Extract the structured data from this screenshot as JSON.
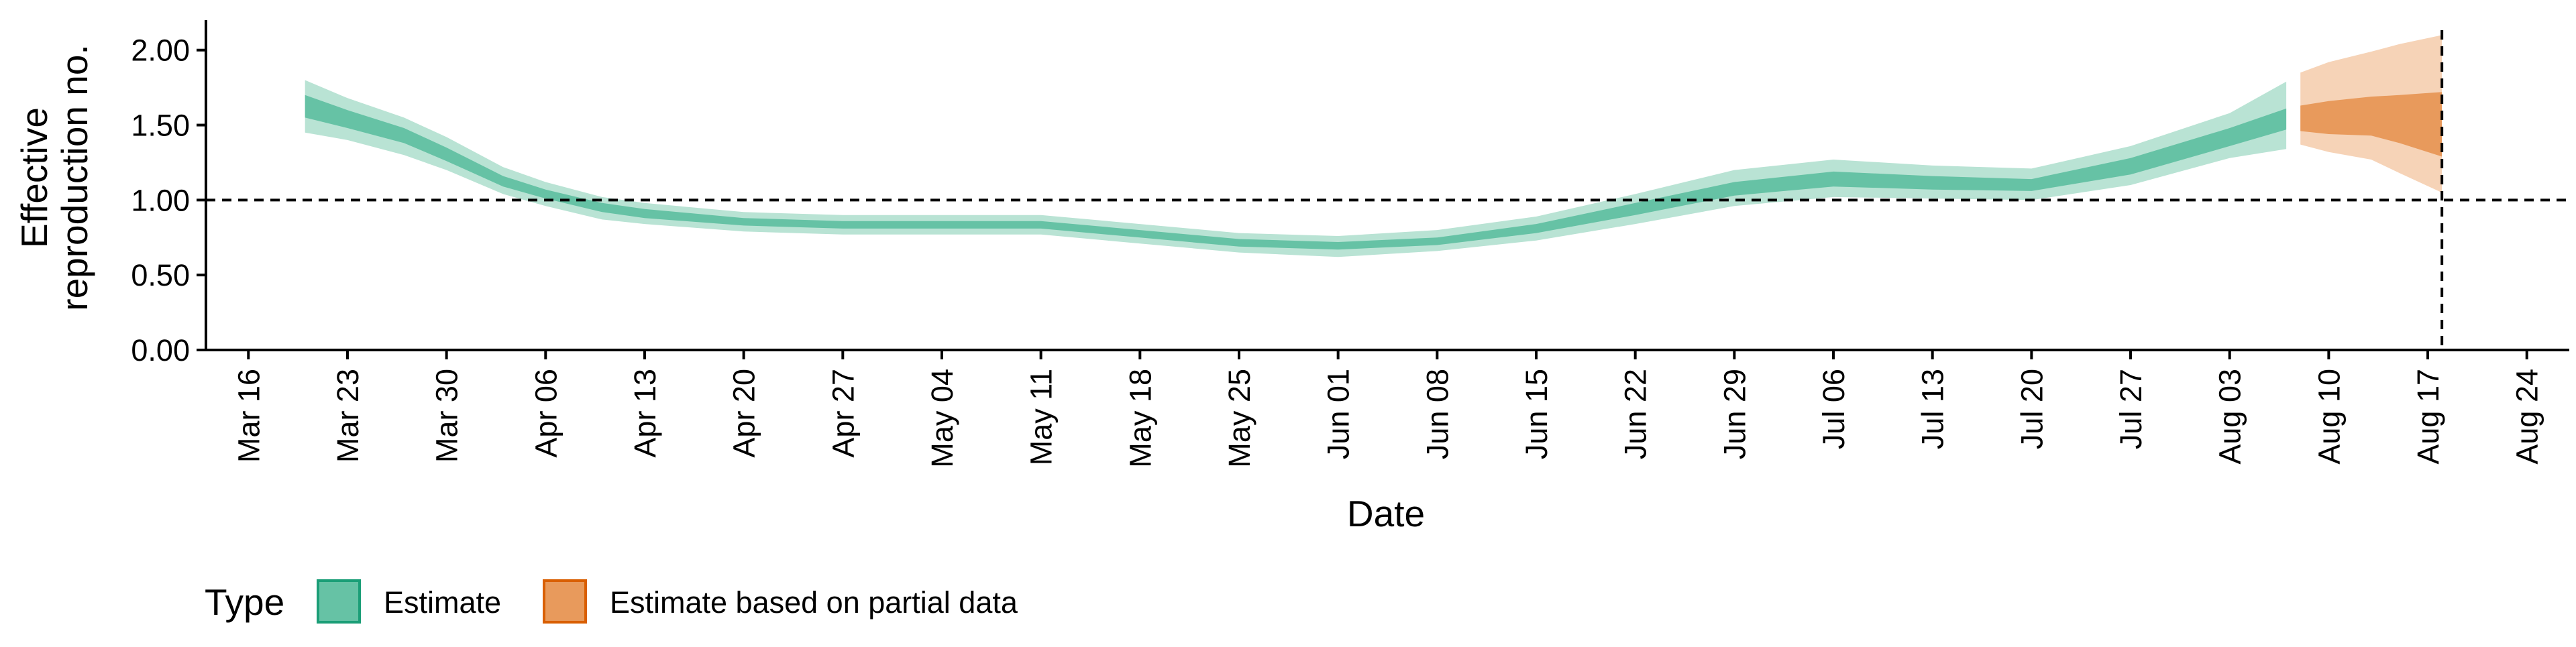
{
  "chart_data": {
    "type": "area",
    "title": "",
    "xlabel": "Date",
    "ylabel": "Effective reproduction no.",
    "ylabel_lines": [
      "Effective",
      "reproduction no."
    ],
    "ylim": [
      0,
      2.2
    ],
    "y_ticks": [
      {
        "value": 0.0,
        "label": "0.00"
      },
      {
        "value": 0.5,
        "label": "0.50"
      },
      {
        "value": 1.0,
        "label": "1.00"
      },
      {
        "value": 1.5,
        "label": "1.50"
      },
      {
        "value": 2.0,
        "label": "2.00"
      }
    ],
    "xlim": [
      "2020-03-13",
      "2020-08-27"
    ],
    "x_ticks": [
      {
        "date": "2020-03-16",
        "label": "Mar 16"
      },
      {
        "date": "2020-03-23",
        "label": "Mar 23"
      },
      {
        "date": "2020-03-30",
        "label": "Mar 30"
      },
      {
        "date": "2020-04-06",
        "label": "Apr 06"
      },
      {
        "date": "2020-04-13",
        "label": "Apr 13"
      },
      {
        "date": "2020-04-20",
        "label": "Apr 20"
      },
      {
        "date": "2020-04-27",
        "label": "Apr 27"
      },
      {
        "date": "2020-05-04",
        "label": "May 04"
      },
      {
        "date": "2020-05-11",
        "label": "May 11"
      },
      {
        "date": "2020-05-18",
        "label": "May 18"
      },
      {
        "date": "2020-05-25",
        "label": "May 25"
      },
      {
        "date": "2020-06-01",
        "label": "Jun 01"
      },
      {
        "date": "2020-06-08",
        "label": "Jun 08"
      },
      {
        "date": "2020-06-15",
        "label": "Jun 15"
      },
      {
        "date": "2020-06-22",
        "label": "Jun 22"
      },
      {
        "date": "2020-06-29",
        "label": "Jun 29"
      },
      {
        "date": "2020-07-06",
        "label": "Jul 06"
      },
      {
        "date": "2020-07-13",
        "label": "Jul 13"
      },
      {
        "date": "2020-07-20",
        "label": "Jul 20"
      },
      {
        "date": "2020-07-27",
        "label": "Jul 27"
      },
      {
        "date": "2020-08-03",
        "label": "Aug 03"
      },
      {
        "date": "2020-08-10",
        "label": "Aug 10"
      },
      {
        "date": "2020-08-17",
        "label": "Aug 17"
      },
      {
        "date": "2020-08-24",
        "label": "Aug 24"
      }
    ],
    "reference_lines": {
      "horizontal_y": 1.0,
      "vertical_date": "2020-08-18"
    },
    "grid": false,
    "legend": {
      "position": "bottom-left",
      "title": "Type",
      "entries": [
        {
          "label": "Estimate",
          "fill": "#66c2a5",
          "stroke": "#1b9e77"
        },
        {
          "label": "Estimate based on partial data",
          "fill": "#e89a5c",
          "stroke": "#d95f02"
        }
      ]
    },
    "series": [
      {
        "name": "Estimate",
        "fill_dark": "#66c2a5",
        "fill_light": "#b9e3d4",
        "points": [
          {
            "date": "2020-03-20",
            "lo90": 1.45,
            "lo50": 1.55,
            "hi50": 1.7,
            "hi90": 1.8
          },
          {
            "date": "2020-03-23",
            "lo90": 1.4,
            "lo50": 1.48,
            "hi50": 1.6,
            "hi90": 1.68
          },
          {
            "date": "2020-03-27",
            "lo90": 1.3,
            "lo50": 1.38,
            "hi50": 1.48,
            "hi90": 1.55
          },
          {
            "date": "2020-03-30",
            "lo90": 1.2,
            "lo50": 1.26,
            "hi50": 1.35,
            "hi90": 1.42
          },
          {
            "date": "2020-04-03",
            "lo90": 1.04,
            "lo50": 1.09,
            "hi50": 1.16,
            "hi90": 1.22
          },
          {
            "date": "2020-04-06",
            "lo90": 0.96,
            "lo50": 1.01,
            "hi50": 1.07,
            "hi90": 1.12
          },
          {
            "date": "2020-04-10",
            "lo90": 0.87,
            "lo50": 0.92,
            "hi50": 0.98,
            "hi90": 1.02
          },
          {
            "date": "2020-04-13",
            "lo90": 0.84,
            "lo50": 0.88,
            "hi50": 0.94,
            "hi90": 0.98
          },
          {
            "date": "2020-04-20",
            "lo90": 0.79,
            "lo50": 0.83,
            "hi50": 0.88,
            "hi90": 0.92
          },
          {
            "date": "2020-04-27",
            "lo90": 0.77,
            "lo50": 0.81,
            "hi50": 0.86,
            "hi90": 0.9
          },
          {
            "date": "2020-05-04",
            "lo90": 0.77,
            "lo50": 0.81,
            "hi50": 0.86,
            "hi90": 0.9
          },
          {
            "date": "2020-05-11",
            "lo90": 0.77,
            "lo50": 0.81,
            "hi50": 0.86,
            "hi90": 0.9
          },
          {
            "date": "2020-05-18",
            "lo90": 0.71,
            "lo50": 0.75,
            "hi50": 0.8,
            "hi90": 0.84
          },
          {
            "date": "2020-05-25",
            "lo90": 0.65,
            "lo50": 0.69,
            "hi50": 0.74,
            "hi90": 0.78
          },
          {
            "date": "2020-06-01",
            "lo90": 0.62,
            "lo50": 0.67,
            "hi50": 0.72,
            "hi90": 0.76
          },
          {
            "date": "2020-06-08",
            "lo90": 0.66,
            "lo50": 0.7,
            "hi50": 0.75,
            "hi90": 0.8
          },
          {
            "date": "2020-06-15",
            "lo90": 0.73,
            "lo50": 0.78,
            "hi50": 0.84,
            "hi90": 0.89
          },
          {
            "date": "2020-06-22",
            "lo90": 0.84,
            "lo50": 0.9,
            "hi50": 0.98,
            "hi90": 1.04
          },
          {
            "date": "2020-06-29",
            "lo90": 0.96,
            "lo50": 1.03,
            "hi50": 1.12,
            "hi90": 1.2
          },
          {
            "date": "2020-07-06",
            "lo90": 1.02,
            "lo50": 1.09,
            "hi50": 1.19,
            "hi90": 1.27
          },
          {
            "date": "2020-07-13",
            "lo90": 1.01,
            "lo50": 1.07,
            "hi50": 1.16,
            "hi90": 1.23
          },
          {
            "date": "2020-07-20",
            "lo90": 1.0,
            "lo50": 1.06,
            "hi50": 1.14,
            "hi90": 1.21
          },
          {
            "date": "2020-07-27",
            "lo90": 1.1,
            "lo50": 1.17,
            "hi50": 1.28,
            "hi90": 1.36
          },
          {
            "date": "2020-08-03",
            "lo90": 1.28,
            "lo50": 1.36,
            "hi50": 1.48,
            "hi90": 1.58
          },
          {
            "date": "2020-08-07",
            "lo90": 1.34,
            "lo50": 1.47,
            "hi50": 1.61,
            "hi90": 1.79
          }
        ]
      },
      {
        "name": "Estimate based on partial data",
        "fill_dark": "#e89a5c",
        "fill_light": "#f6d3b7",
        "points": [
          {
            "date": "2020-08-08",
            "lo90": 1.37,
            "lo50": 1.46,
            "hi50": 1.63,
            "hi90": 1.85
          },
          {
            "date": "2020-08-10",
            "lo90": 1.32,
            "lo50": 1.44,
            "hi50": 1.66,
            "hi90": 1.92
          },
          {
            "date": "2020-08-13",
            "lo90": 1.27,
            "lo50": 1.43,
            "hi50": 1.69,
            "hi90": 1.99
          },
          {
            "date": "2020-08-15",
            "lo90": 1.18,
            "lo50": 1.38,
            "hi50": 1.7,
            "hi90": 2.04
          },
          {
            "date": "2020-08-18",
            "lo90": 1.05,
            "lo50": 1.29,
            "hi50": 1.72,
            "hi90": 2.1
          }
        ]
      }
    ]
  }
}
